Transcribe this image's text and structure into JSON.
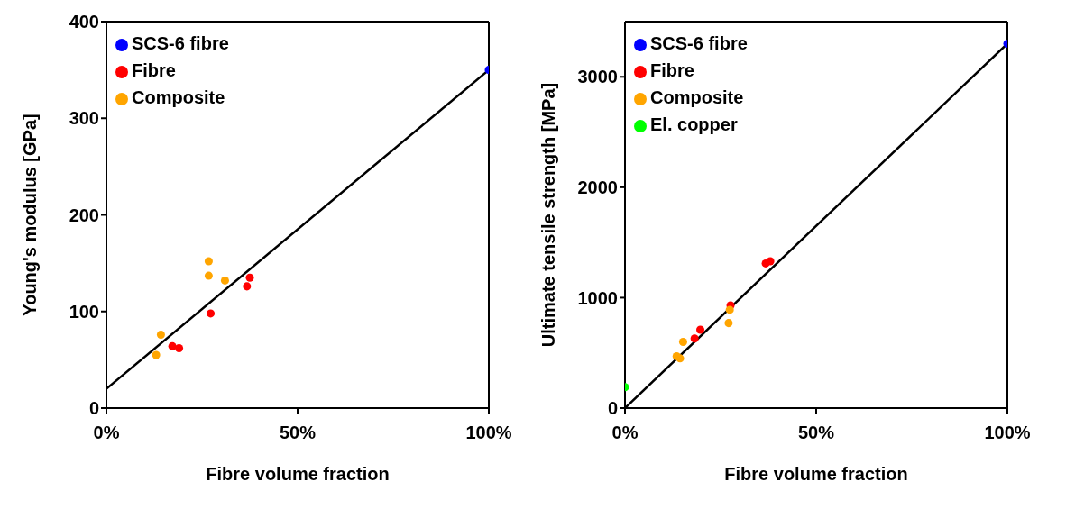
{
  "chart_data": [
    {
      "type": "scatter",
      "xlabel": "Fibre volume fraction",
      "ylabel": "Young's modulus [GPa]",
      "xlim": [
        0,
        100
      ],
      "xticks": [
        {
          "value": 0,
          "label": "0%"
        },
        {
          "value": 50,
          "label": "50%"
        },
        {
          "value": 100,
          "label": "100%"
        }
      ],
      "ylim": [
        0,
        400
      ],
      "yticks": [
        0,
        100,
        200,
        300,
        400
      ],
      "grid": false,
      "legend": "top left",
      "marker": "circle",
      "series": [
        {
          "name": "SCS-6 fibre",
          "color": "#0000ff",
          "x": [
            100
          ],
          "values": [
            350
          ]
        },
        {
          "name": "Fibre",
          "color": "#ff0000",
          "x": [
            37.5,
            36.75,
            27.25,
            17.25,
            19
          ],
          "values": [
            135,
            126,
            98,
            64,
            62
          ]
        },
        {
          "name": "Composite",
          "color": "#ffa500",
          "x": [
            26.75,
            26.75,
            31,
            14.25,
            13
          ],
          "values": [
            152,
            137,
            132,
            76,
            55
          ]
        },
        {
          "type": "line",
          "color": "#000000",
          "x": [
            0,
            100
          ],
          "values": [
            20,
            350
          ],
          "marker": "none",
          "line_style": "solid"
        }
      ]
    },
    {
      "type": "scatter",
      "xlabel": "Fibre volume fraction",
      "ylabel": "Ultimate tensile strength [MPa]",
      "xlim": [
        0,
        100
      ],
      "xticks": [
        {
          "value": 0,
          "label": "0%"
        },
        {
          "value": 50,
          "label": "50%"
        },
        {
          "value": 100,
          "label": "100%"
        }
      ],
      "ylim": [
        0,
        3500
      ],
      "yticks": [
        0,
        1000,
        2000,
        3000
      ],
      "grid": false,
      "legend": "top left",
      "marker": "circle",
      "series": [
        {
          "name": "SCS-6 fibre",
          "color": "#0000ff",
          "x": [
            100
          ],
          "values": [
            3300
          ]
        },
        {
          "name": "Fibre",
          "color": "#ff0000",
          "x": [
            36.8,
            38,
            27.6,
            19.7,
            18.2
          ],
          "values": [
            1310,
            1330,
            930,
            710,
            630
          ]
        },
        {
          "name": "Composite",
          "color": "#ffa500",
          "x": [
            27.4,
            27.1,
            15.2,
            14.4,
            13.5
          ],
          "values": [
            890,
            770,
            600,
            450,
            470
          ]
        },
        {
          "name": "El. copper",
          "color": "#00ff00",
          "x": [
            0
          ],
          "values": [
            190
          ]
        },
        {
          "type": "line",
          "color": "#000000",
          "x": [
            0,
            100
          ],
          "values": [
            0,
            3300
          ],
          "marker": "none",
          "line_style": "solid"
        }
      ]
    }
  ]
}
